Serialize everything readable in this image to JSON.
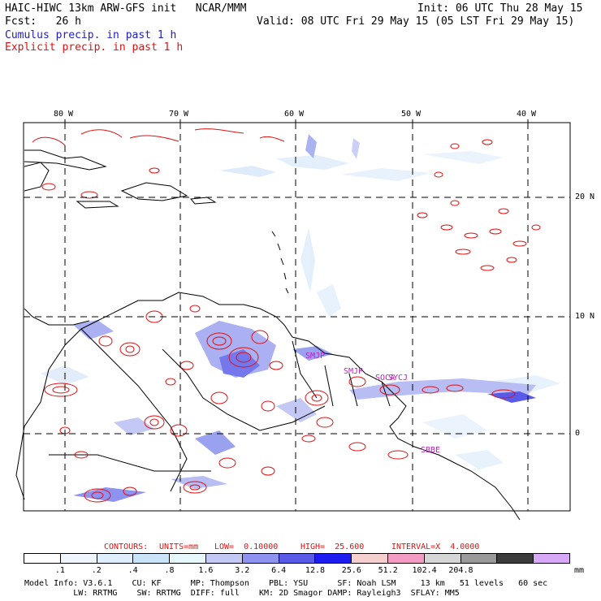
{
  "header": {
    "left_line1": "HAIC-HIWC 13km ARW-GFS init   NCAR/MMM",
    "left_line2": "Fcst:   26 h",
    "right_line1": "Init: 06 UTC Thu 28 May 15",
    "right_line2": "Valid: 08 UTC Fri 29 May 15 (05 LST Fri 29 May 15)",
    "legend_cumulus": "Cumulus precip. in past 1 h",
    "legend_explicit": "Explicit precip. in past 1 h"
  },
  "map": {
    "lon_labels": [
      "80 W",
      "70 W",
      "60 W",
      "50 W",
      "40 W"
    ],
    "lat_labels": [
      "20 N",
      "10 N",
      "0"
    ],
    "stations": [
      "SMJP",
      "SOCA",
      "SBBE",
      "SMJP",
      "SYCJ"
    ]
  },
  "contours_line": {
    "contours_label": "CONTOURS:",
    "units": "UNITS=mm",
    "low": "LOW=  0.10000",
    "high": "HIGH=  25.600",
    "interval": "INTERVAL=X  4.0000"
  },
  "colorbar": {
    "labels": [
      ".1",
      ".2",
      ".4",
      ".8",
      "1.6",
      "3.2",
      "6.4",
      "12.8",
      "25.6",
      "51.2",
      "102.4",
      "204.8"
    ],
    "unit": "mm",
    "colors": [
      "#ffffff",
      "#f0f6ff",
      "#dfeefc",
      "#c9e3f8",
      "#e6f8fb",
      "#c4c8f5",
      "#8e92f0",
      "#5a5ae8",
      "#1c1cf0",
      "#f6cfd0",
      "#f29cc4",
      "#d6d6d6",
      "#9a9a9a",
      "#3c3c3c",
      "#d8a9f7"
    ]
  },
  "model_info": {
    "line1": "Model Info: V3.6.1    CU: KF      MP: Thompson    PBL: YSU      SF: Noah LSM     13 km   51 levels   60 sec",
    "line2": "          LW: RRTMG    SW: RRTMG  DIFF: full    KM: 2D Smagor DAMP: Rayleigh3  SFLAY: MM5"
  }
}
